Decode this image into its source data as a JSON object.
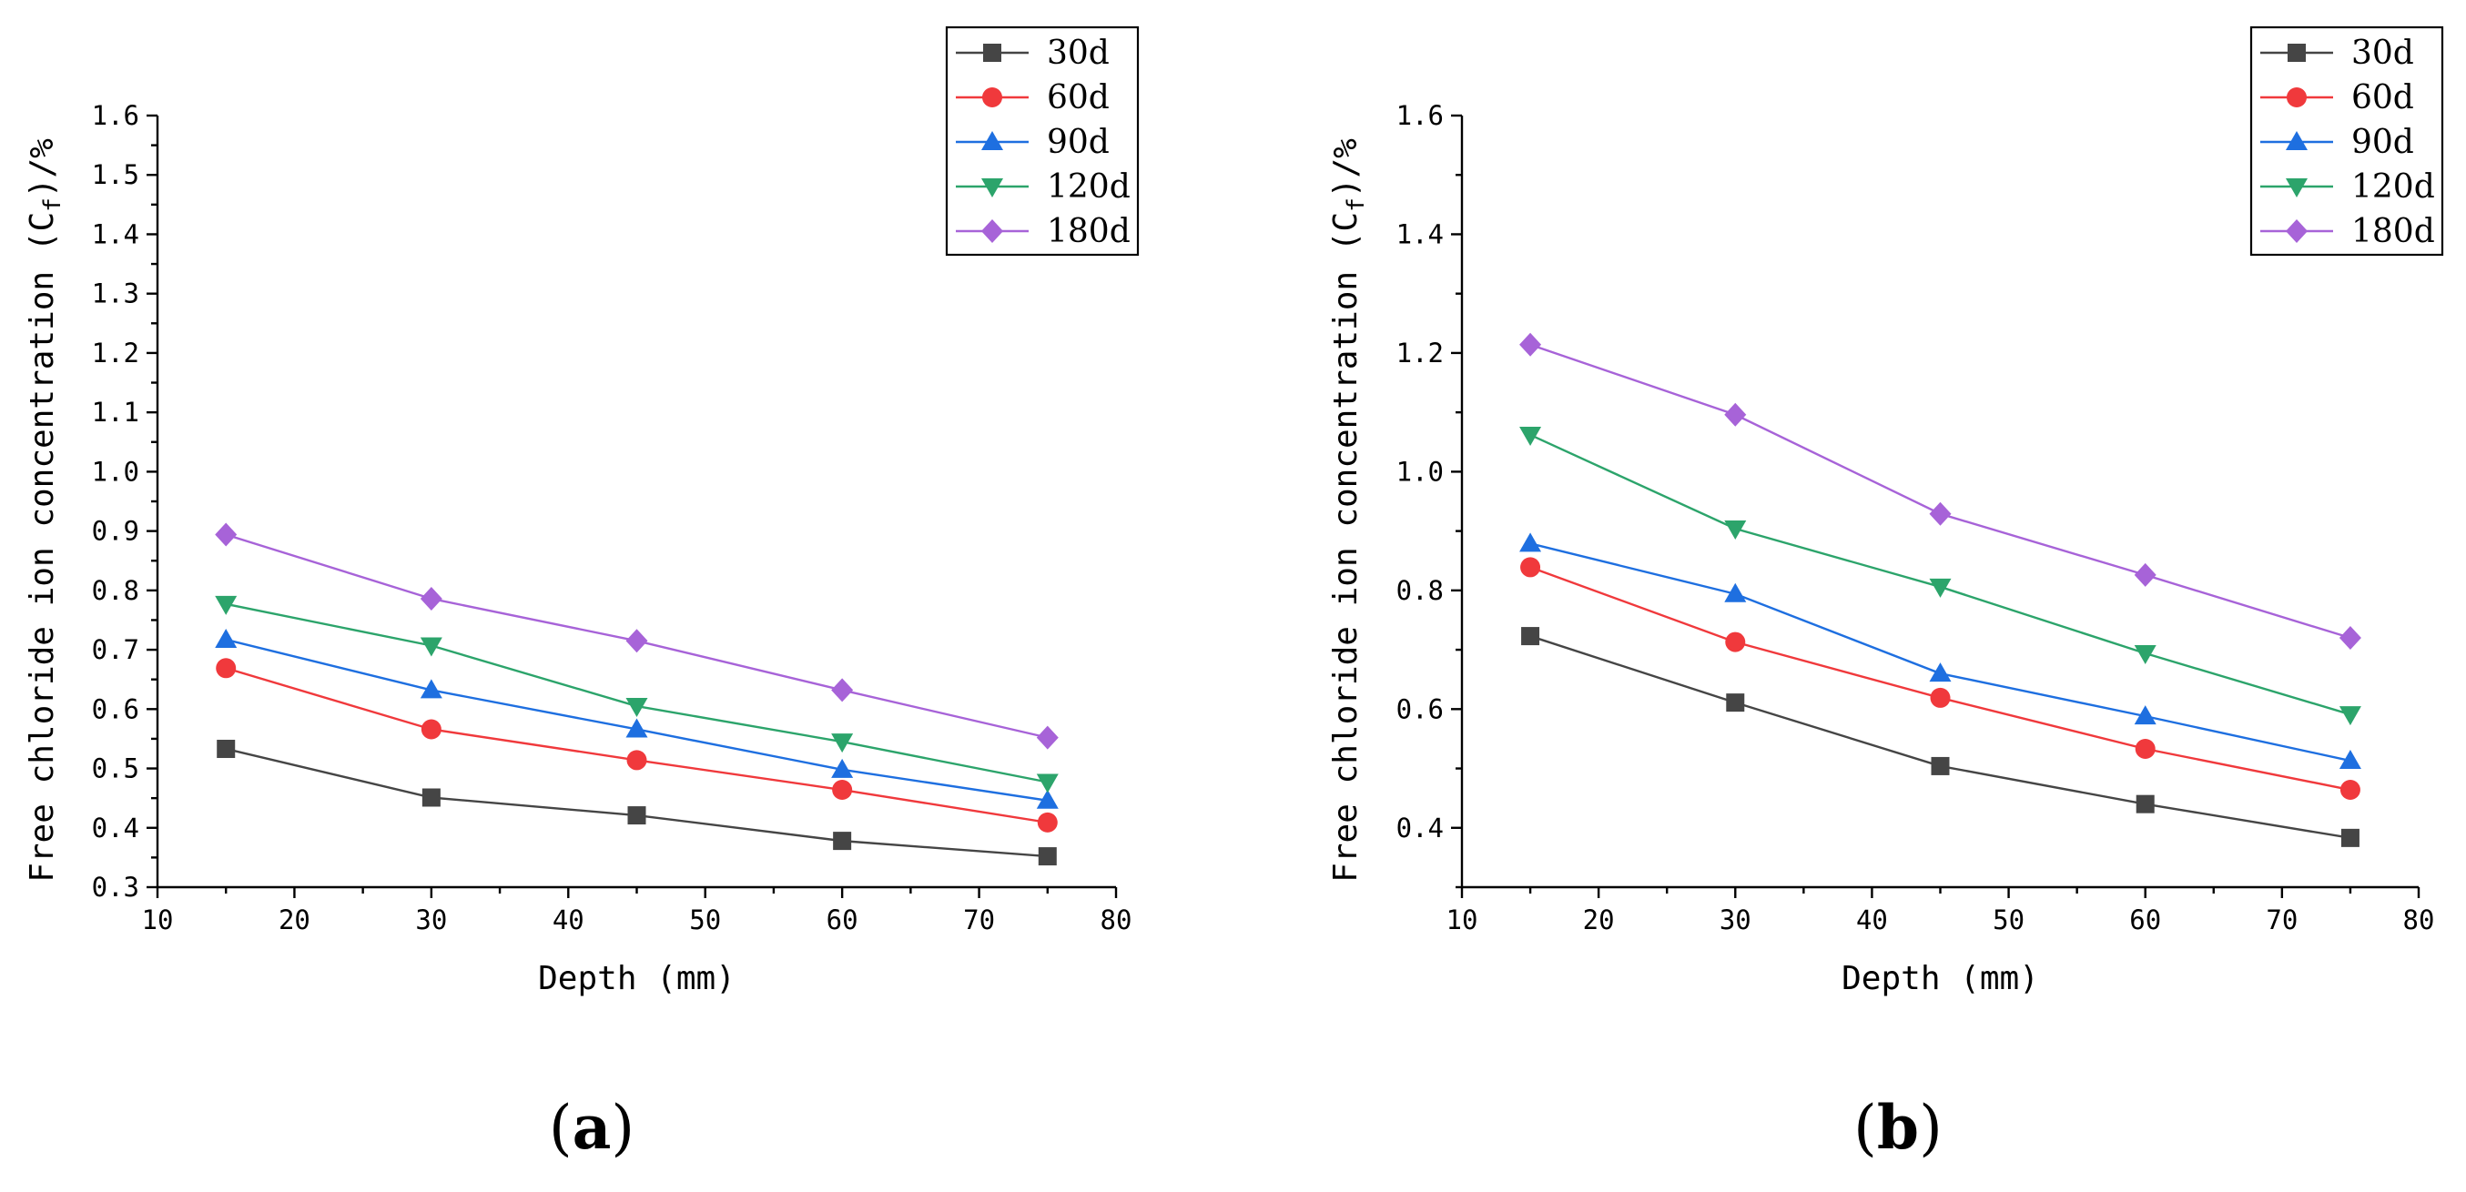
{
  "chart_data": [
    {
      "type": "line",
      "panel_label": "a",
      "xlabel": "Depth (mm)",
      "ylabel": "Free chloride ion concentration (C",
      "ylabel_sub": "f",
      "ylabel_suffix": ")/%",
      "xlim": [
        10,
        80
      ],
      "ylim": [
        0.3,
        1.6
      ],
      "xticks": [
        "10",
        "20",
        "30",
        "40",
        "50",
        "60",
        "70",
        "80"
      ],
      "yticks": [
        "0.3",
        "0.4",
        "0.5",
        "0.6",
        "0.7",
        "0.8",
        "0.9",
        "1.0",
        "1.1",
        "1.2",
        "1.3",
        "1.4",
        "1.5",
        "1.6"
      ],
      "legend_position": "top-right",
      "x": [
        15,
        30,
        45,
        60,
        75
      ],
      "series": [
        {
          "name": "30d",
          "color": "#454545",
          "marker": "square",
          "values": [
            0.533,
            0.451,
            0.421,
            0.378,
            0.352
          ]
        },
        {
          "name": "60d",
          "color": "#f0393c",
          "marker": "circle",
          "values": [
            0.669,
            0.566,
            0.514,
            0.464,
            0.409
          ]
        },
        {
          "name": "90d",
          "color": "#1e6fe0",
          "marker": "triangle-up",
          "values": [
            0.717,
            0.632,
            0.566,
            0.498,
            0.446
          ]
        },
        {
          "name": "120d",
          "color": "#2ca46b",
          "marker": "triangle-down",
          "values": [
            0.777,
            0.707,
            0.605,
            0.545,
            0.477
          ]
        },
        {
          "name": "180d",
          "color": "#a763d8",
          "marker": "diamond",
          "values": [
            0.894,
            0.786,
            0.715,
            0.632,
            0.552
          ]
        }
      ]
    },
    {
      "type": "line",
      "panel_label": "b",
      "xlabel": "Depth (mm)",
      "ylabel": "Free chloride ion concentration (C",
      "ylabel_sub": "f",
      "ylabel_suffix": ")/%",
      "xlim": [
        10,
        80
      ],
      "ylim": [
        0.3,
        1.6
      ],
      "xticks": [
        "10",
        "20",
        "30",
        "40",
        "50",
        "60",
        "70",
        "80"
      ],
      "yticks": [
        "0.4",
        "0.6",
        "0.8",
        "1.0",
        "1.2",
        "1.4",
        "1.6"
      ],
      "legend_position": "top-right",
      "x": [
        15,
        30,
        45,
        60,
        75
      ],
      "series": [
        {
          "name": "30d",
          "color": "#454545",
          "marker": "square",
          "values": [
            0.723,
            0.611,
            0.504,
            0.44,
            0.383
          ]
        },
        {
          "name": "60d",
          "color": "#f0393c",
          "marker": "circle",
          "values": [
            0.839,
            0.713,
            0.619,
            0.533,
            0.464
          ]
        },
        {
          "name": "90d",
          "color": "#1e6fe0",
          "marker": "triangle-up",
          "values": [
            0.879,
            0.794,
            0.66,
            0.588,
            0.513
          ]
        },
        {
          "name": "120d",
          "color": "#2ca46b",
          "marker": "triangle-down",
          "values": [
            1.062,
            0.904,
            0.806,
            0.694,
            0.591
          ]
        },
        {
          "name": "180d",
          "color": "#a763d8",
          "marker": "diamond",
          "values": [
            1.214,
            1.096,
            0.929,
            0.826,
            0.72
          ]
        }
      ]
    }
  ]
}
